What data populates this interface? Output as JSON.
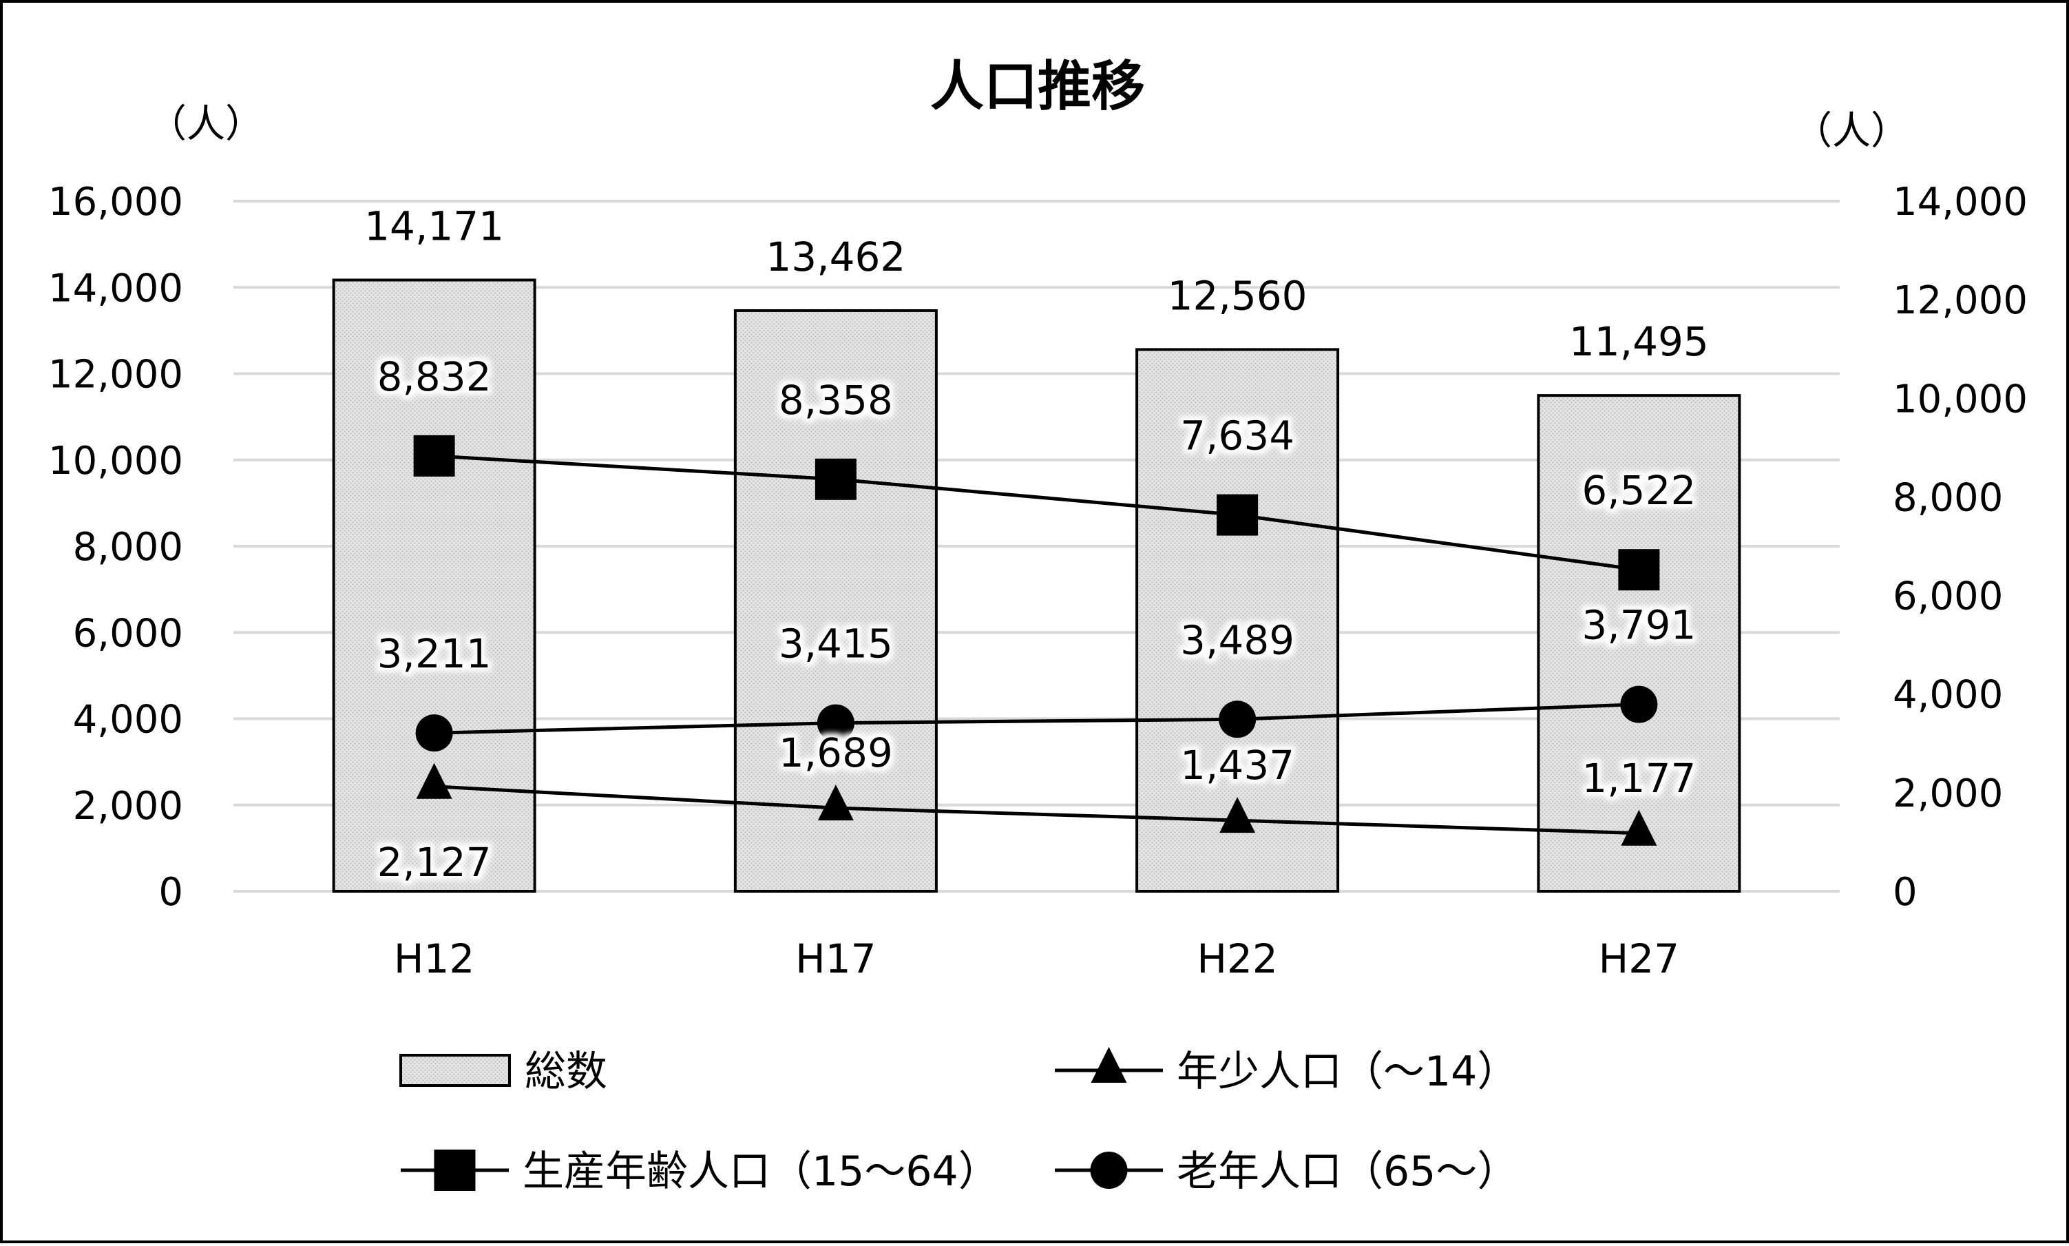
{
  "chart_data": {
    "type": "bar",
    "title": "人口推移",
    "y_left_unit": "（人）",
    "y_right_unit": "（人）",
    "categories": [
      "H12",
      "H17",
      "H22",
      "H27"
    ],
    "y_left_ticks": [
      "16,000",
      "14,000",
      "12,000",
      "10,000",
      "8,000",
      "6,000",
      "4,000",
      "2,000",
      "0"
    ],
    "y_right_ticks": [
      "14,000",
      "12,000",
      "10,000",
      "8,000",
      "6,000",
      "4,000",
      "2,000",
      "0"
    ],
    "ylim_left": [
      0,
      16000
    ],
    "ylim_right": [
      0,
      14000
    ],
    "grid": true,
    "legend_position": "bottom",
    "series": [
      {
        "name": "総数",
        "kind": "bar",
        "axis": "left",
        "values": [
          14171,
          13462,
          12560,
          11495
        ],
        "labels": [
          "14,171",
          "13,462",
          "12,560",
          "11,495"
        ]
      },
      {
        "name": "年少人口（～14）",
        "kind": "line",
        "marker": "triangle",
        "axis": "right",
        "values": [
          2127,
          1689,
          1437,
          1177
        ],
        "labels": [
          "2,127",
          "1,689",
          "1,437",
          "1,177"
        ]
      },
      {
        "name": "生産年齢人口（15～64）",
        "kind": "line",
        "marker": "square",
        "axis": "right",
        "values": [
          8832,
          8358,
          7634,
          6522
        ],
        "labels": [
          "8,832",
          "8,358",
          "7,634",
          "6,522"
        ]
      },
      {
        "name": "老年人口（65～）",
        "kind": "line",
        "marker": "circle",
        "axis": "right",
        "values": [
          3211,
          3415,
          3489,
          3791
        ],
        "labels": [
          "3,211",
          "3,415",
          "3,489",
          "3,791"
        ]
      }
    ]
  }
}
